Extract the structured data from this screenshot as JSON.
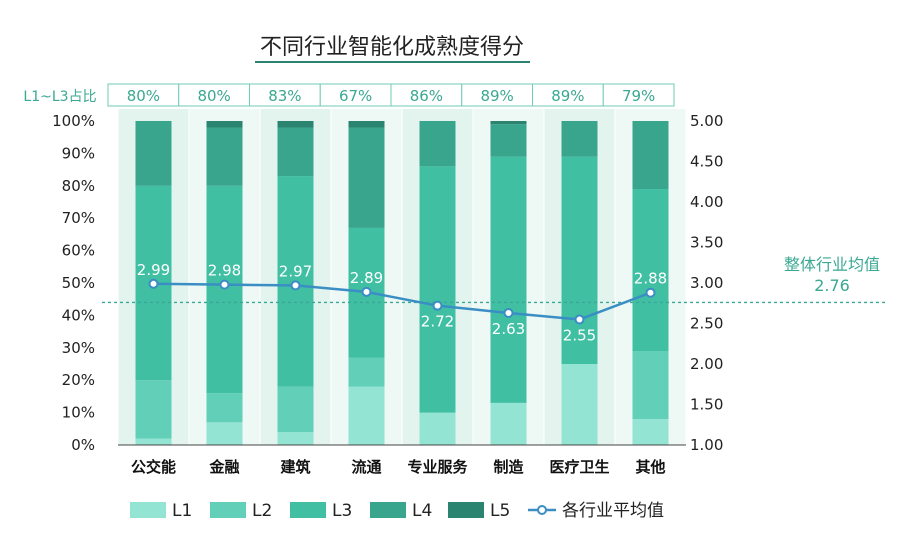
{
  "chart_data": {
    "type": "bar",
    "subtype": "stacked-100-percent-with-line-overlay",
    "title": "不同行业智能化成熟度得分",
    "categories": [
      "公交能",
      "金融",
      "建筑",
      "流通",
      "专业服务",
      "制造",
      "医疗卫生",
      "其他"
    ],
    "series": [
      {
        "name": "L1",
        "color": "#93e4d2",
        "values": [
          2,
          7,
          4,
          18,
          10,
          13,
          25,
          8
        ]
      },
      {
        "name": "L2",
        "color": "#62d0b8",
        "values": [
          18,
          9,
          14,
          9,
          0,
          0,
          0,
          21
        ]
      },
      {
        "name": "L3",
        "color": "#40bfa3",
        "values": [
          60,
          64,
          65,
          40,
          76,
          76,
          64,
          50
        ]
      },
      {
        "name": "L4",
        "color": "#3aa58d",
        "values": [
          20,
          18,
          15,
          31,
          14,
          10,
          11,
          21
        ]
      },
      {
        "name": "L5",
        "color": "#2a8470",
        "values": [
          0,
          2,
          2,
          2,
          0,
          1,
          0,
          0
        ]
      }
    ],
    "line_series": {
      "name": "各行业平均值",
      "color": "#3a8ec4",
      "axis": "right",
      "values": [
        2.99,
        2.98,
        2.97,
        2.89,
        2.72,
        2.63,
        2.55,
        2.88
      ],
      "labels": [
        "2.99",
        "2.98",
        "2.97",
        "2.89",
        "2.72",
        "2.63",
        "2.55",
        "2.88"
      ]
    },
    "left_axis": {
      "ylim": [
        0,
        100
      ],
      "ticks": [
        "0%",
        "10%",
        "20%",
        "30%",
        "40%",
        "50%",
        "60%",
        "70%",
        "80%",
        "90%",
        "100%"
      ]
    },
    "right_axis": {
      "ylim": [
        1.0,
        5.0
      ],
      "ticks": [
        "1.00",
        "1.50",
        "2.00",
        "2.50",
        "3.00",
        "3.50",
        "4.00",
        "4.50",
        "5.00"
      ]
    },
    "l1_l3_row": {
      "label": "L1~L3占比",
      "values": [
        "80%",
        "80%",
        "83%",
        "67%",
        "86%",
        "89%",
        "89%",
        "79%"
      ]
    },
    "overall_average": {
      "label": "整体行业均值",
      "value": 2.76,
      "value_text": "2.76"
    },
    "legend": [
      "L1",
      "L2",
      "L3",
      "L4",
      "L5",
      "各行业平均值"
    ],
    "legend_placement": "bottom"
  }
}
